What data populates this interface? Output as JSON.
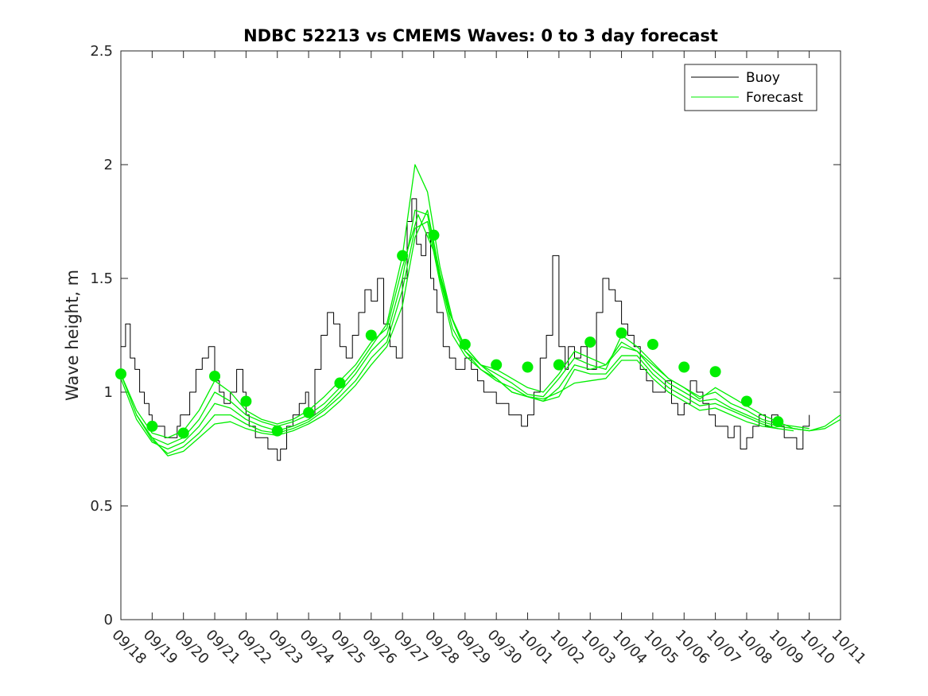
{
  "chart_data": {
    "type": "line",
    "title": "NDBC 52213 vs CMEMS Waves: 0 to 3 day forecast",
    "xlabel": "",
    "ylabel": "Wave height, m",
    "xlim": [
      "09/18",
      "10/11"
    ],
    "ylim": [
      0,
      2.5
    ],
    "yticks": [
      0,
      0.5,
      1,
      1.5,
      2,
      2.5
    ],
    "ytick_labels": [
      "0",
      "0.5",
      "1",
      "1.5",
      "2",
      "2.5"
    ],
    "xtick_labels": [
      "09/18",
      "09/19",
      "09/20",
      "09/21",
      "09/22",
      "09/23",
      "09/24",
      "09/25",
      "09/26",
      "09/27",
      "09/28",
      "09/29",
      "09/30",
      "10/01",
      "10/02",
      "10/03",
      "10/04",
      "10/05",
      "10/06",
      "10/07",
      "10/08",
      "10/09",
      "10/10",
      "10/11"
    ],
    "grid": false,
    "legend_placement": "top-right",
    "legend": [
      {
        "label": "Buoy",
        "color": "#000000"
      },
      {
        "label": "Forecast",
        "color": "#00ee00"
      }
    ],
    "colors": {
      "buoy": "#000000",
      "forecast": "#00ee00",
      "analysis_marker": "#00ee00"
    },
    "series": [
      {
        "name": "Buoy",
        "day_offset": [
          0,
          0.15,
          0.3,
          0.45,
          0.6,
          0.75,
          0.9,
          1.0,
          1.2,
          1.4,
          1.6,
          1.8,
          1.9,
          2.0,
          2.2,
          2.4,
          2.6,
          2.8,
          3.0,
          3.15,
          3.3,
          3.5,
          3.7,
          3.9,
          4.0,
          4.1,
          4.3,
          4.5,
          4.7,
          4.9,
          5.0,
          5.1,
          5.3,
          5.5,
          5.7,
          5.9,
          6.0,
          6.2,
          6.4,
          6.6,
          6.8,
          7.0,
          7.2,
          7.4,
          7.6,
          7.8,
          8.0,
          8.2,
          8.4,
          8.6,
          8.8,
          9.0,
          9.15,
          9.3,
          9.45,
          9.6,
          9.75,
          9.9,
          10.0,
          10.1,
          10.3,
          10.5,
          10.7,
          10.9,
          11.0,
          11.2,
          11.4,
          11.6,
          11.8,
          12.0,
          12.2,
          12.4,
          12.6,
          12.8,
          13.0,
          13.2,
          13.4,
          13.6,
          13.8,
          14.0,
          14.2,
          14.3,
          14.5,
          14.7,
          14.9,
          15.0,
          15.2,
          15.4,
          15.6,
          15.8,
          16.0,
          16.2,
          16.4,
          16.6,
          16.8,
          17.0,
          17.2,
          17.4,
          17.6,
          17.8,
          18.0,
          18.2,
          18.4,
          18.6,
          18.8,
          19.0,
          19.2,
          19.4,
          19.6,
          19.8,
          20.0,
          20.2,
          20.4,
          20.6,
          20.8,
          21.0,
          21.2,
          21.4,
          21.6,
          21.8,
          22.0
        ],
        "values": [
          1.2,
          1.3,
          1.15,
          1.1,
          1.0,
          0.95,
          0.9,
          0.85,
          0.85,
          0.8,
          0.8,
          0.85,
          0.9,
          0.9,
          1.0,
          1.1,
          1.15,
          1.2,
          1.05,
          1.0,
          0.95,
          1.0,
          1.1,
          1.0,
          0.9,
          0.85,
          0.8,
          0.8,
          0.75,
          0.75,
          0.7,
          0.75,
          0.85,
          0.9,
          0.95,
          1.0,
          0.9,
          1.1,
          1.25,
          1.35,
          1.3,
          1.2,
          1.15,
          1.25,
          1.35,
          1.45,
          1.4,
          1.5,
          1.3,
          1.2,
          1.15,
          1.5,
          1.75,
          1.85,
          1.65,
          1.6,
          1.7,
          1.5,
          1.45,
          1.35,
          1.2,
          1.15,
          1.1,
          1.1,
          1.15,
          1.1,
          1.05,
          1.0,
          1.0,
          0.95,
          0.95,
          0.9,
          0.9,
          0.85,
          0.9,
          1.0,
          1.15,
          1.25,
          1.6,
          1.2,
          1.1,
          1.2,
          1.15,
          1.2,
          1.1,
          1.1,
          1.35,
          1.5,
          1.45,
          1.4,
          1.3,
          1.25,
          1.2,
          1.1,
          1.05,
          1.0,
          1.0,
          1.05,
          0.95,
          0.9,
          0.95,
          1.05,
          1.0,
          0.95,
          0.9,
          0.85,
          0.85,
          0.8,
          0.85,
          0.75,
          0.8,
          0.85,
          0.9,
          0.85,
          0.9,
          0.85,
          0.8,
          0.8,
          0.75,
          0.85,
          0.9
        ]
      },
      {
        "name": "Forecast",
        "day_offset": [
          0,
          0.5,
          1.0,
          1.5,
          2.0,
          2.5,
          3.0,
          3.5,
          4.0,
          4.5,
          5.0,
          5.5,
          6.0,
          6.5,
          7.0,
          7.5,
          8.0,
          8.5,
          9.0,
          9.5,
          10.0,
          10.5,
          11.0,
          11.5,
          12.0,
          12.5,
          13.0,
          13.5,
          14.0,
          14.5,
          15.0,
          15.5,
          16.0,
          16.5,
          17.0,
          17.5,
          18.0,
          18.5,
          19.0,
          19.5,
          20.0,
          20.5,
          21.0,
          21.5,
          22.0,
          22.5,
          23.0
        ],
        "values": [
          1.08,
          0.92,
          0.82,
          0.8,
          0.83,
          0.92,
          1.05,
          1.0,
          0.92,
          0.88,
          0.86,
          0.88,
          0.92,
          0.98,
          1.05,
          1.12,
          1.22,
          1.28,
          1.55,
          1.78,
          1.62,
          1.35,
          1.18,
          1.12,
          1.1,
          1.06,
          1.02,
          1.0,
          1.08,
          1.18,
          1.15,
          1.12,
          1.22,
          1.18,
          1.12,
          1.06,
          1.02,
          0.97,
          1.02,
          0.98,
          0.94,
          0.9,
          0.87,
          0.84,
          0.83,
          0.84,
          0.88
        ]
      },
      {
        "name": "Forecast",
        "day_offset": [
          0,
          0.5,
          1.0,
          1.5,
          2.0,
          2.5,
          3.0,
          3.5,
          4.0,
          4.5,
          5.0,
          5.5,
          6.0,
          6.5,
          7.0,
          7.5,
          8.0,
          8.5,
          9.0,
          9.4,
          9.8,
          10.2,
          10.6,
          11.0,
          11.5,
          12.0,
          12.5,
          13.0,
          13.5,
          14.0,
          14.5,
          15.0,
          15.5,
          16.0,
          16.5,
          17.0,
          17.5,
          18.0,
          18.5,
          19.0,
          19.5,
          20.0,
          20.5,
          21.0,
          21.5,
          22.0
        ],
        "values": [
          1.08,
          0.9,
          0.8,
          0.77,
          0.8,
          0.88,
          1.0,
          0.96,
          0.9,
          0.87,
          0.85,
          0.87,
          0.9,
          0.95,
          1.02,
          1.1,
          1.2,
          1.3,
          1.6,
          2.0,
          1.88,
          1.55,
          1.32,
          1.2,
          1.12,
          1.08,
          1.04,
          0.99,
          0.98,
          1.06,
          1.15,
          1.12,
          1.1,
          1.25,
          1.2,
          1.13,
          1.06,
          1.02,
          0.98,
          1.0,
          0.95,
          0.92,
          0.88,
          0.86,
          0.85,
          0.84
        ]
      },
      {
        "name": "Forecast",
        "day_offset": [
          0,
          0.5,
          1.0,
          1.5,
          2.0,
          2.5,
          3.0,
          3.5,
          4.0,
          4.5,
          5.0,
          5.5,
          6.0,
          6.5,
          7.0,
          7.5,
          8.0,
          8.5,
          9.0,
          9.4,
          9.8,
          10.2,
          10.6,
          11.0,
          11.5,
          12.0,
          12.5,
          13.0,
          13.5,
          14.0,
          14.5,
          15.0,
          15.5,
          16.0,
          16.5,
          17.0,
          17.5,
          18.0,
          18.5,
          19.0,
          19.5,
          20.0,
          20.5,
          21.0,
          21.5,
          22.0,
          22.5,
          23.0
        ],
        "values": [
          1.06,
          0.88,
          0.78,
          0.75,
          0.78,
          0.85,
          0.95,
          0.93,
          0.88,
          0.85,
          0.83,
          0.85,
          0.88,
          0.93,
          1.0,
          1.08,
          1.18,
          1.25,
          1.5,
          1.8,
          1.78,
          1.5,
          1.28,
          1.18,
          1.1,
          1.05,
          1.02,
          0.98,
          0.96,
          1.02,
          1.12,
          1.1,
          1.12,
          1.2,
          1.18,
          1.1,
          1.04,
          1.0,
          0.96,
          0.97,
          0.93,
          0.9,
          0.87,
          0.85,
          0.84,
          0.83,
          0.85,
          0.9
        ]
      },
      {
        "name": "Forecast",
        "day_offset": [
          0.5,
          1.0,
          1.5,
          2.0,
          2.5,
          3.0,
          3.5,
          4.0,
          4.5,
          5.0,
          5.5,
          6.0,
          6.5,
          7.0,
          7.5,
          8.0,
          8.5,
          9.0,
          9.4,
          9.8,
          10.2,
          10.6,
          11.0,
          11.5,
          12.0,
          12.5,
          13.0,
          13.5,
          14.0,
          14.5,
          15.0,
          15.5,
          16.0,
          16.5,
          17.0,
          17.5,
          18.0,
          18.5,
          19.0,
          19.5,
          20.0,
          20.5,
          21.0,
          21.5
        ],
        "values": [
          0.9,
          0.79,
          0.73,
          0.76,
          0.82,
          0.9,
          0.9,
          0.86,
          0.83,
          0.82,
          0.84,
          0.87,
          0.92,
          0.98,
          1.05,
          1.15,
          1.22,
          1.45,
          1.72,
          1.75,
          1.48,
          1.25,
          1.16,
          1.1,
          1.06,
          1.0,
          0.98,
          0.96,
          0.98,
          1.1,
          1.08,
          1.08,
          1.16,
          1.16,
          1.08,
          1.02,
          0.98,
          0.94,
          0.95,
          0.92,
          0.89,
          0.86,
          0.84,
          0.83
        ]
      },
      {
        "name": "Forecast",
        "day_offset": [
          1.0,
          1.5,
          2.0,
          2.5,
          3.0,
          3.5,
          4.0,
          4.5,
          5.0,
          5.5,
          6.0,
          6.5,
          7.0,
          7.5,
          8.0,
          8.5,
          9.0,
          9.4,
          9.8,
          10.2,
          10.6,
          11.0,
          11.5,
          12.0,
          12.5,
          13.0,
          13.5,
          14.0,
          14.5,
          15.0,
          15.5,
          16.0,
          16.5,
          17.0,
          17.5,
          18.0,
          18.5,
          19.0,
          19.5,
          20.0,
          20.5,
          21.0
        ],
        "values": [
          0.8,
          0.72,
          0.74,
          0.8,
          0.86,
          0.87,
          0.84,
          0.82,
          0.81,
          0.83,
          0.86,
          0.9,
          0.96,
          1.03,
          1.12,
          1.2,
          1.38,
          1.68,
          1.8,
          1.52,
          1.32,
          1.2,
          1.12,
          1.06,
          1.0,
          0.98,
          0.97,
          1.0,
          1.04,
          1.05,
          1.06,
          1.14,
          1.14,
          1.06,
          1.0,
          0.96,
          0.92,
          0.93,
          0.9,
          0.87,
          0.85,
          0.84
        ]
      }
    ],
    "analysis_markers": {
      "name": "Forecast",
      "day_offset": [
        0,
        1,
        2,
        3,
        4,
        5,
        6,
        7,
        8,
        9,
        10,
        11,
        12,
        13,
        14,
        15,
        16,
        17,
        18,
        19,
        20,
        21
      ],
      "values": [
        1.08,
        0.85,
        0.82,
        1.07,
        0.96,
        0.83,
        0.91,
        1.04,
        1.25,
        1.6,
        1.69,
        1.21,
        1.12,
        1.11,
        1.12,
        1.22,
        1.26,
        1.21,
        1.11,
        1.09,
        0.96,
        0.87
      ]
    }
  }
}
